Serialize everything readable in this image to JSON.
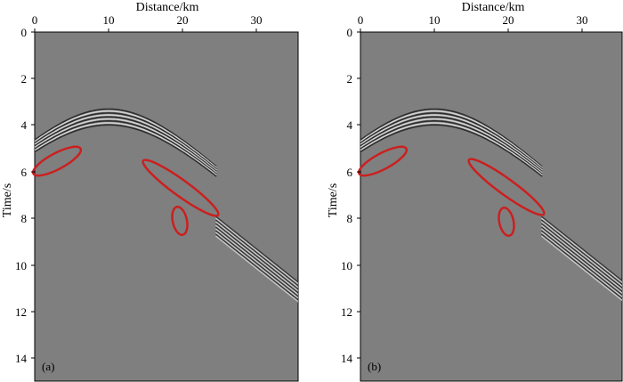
{
  "figure": {
    "background": "#7f7f7f",
    "highlight_color": "#cc1f1f",
    "panels": [
      {
        "tag": "(a)",
        "x_title": "Distance/km",
        "y_title": "Time/s",
        "x_ticks": [
          "0",
          "10",
          "20",
          "30"
        ],
        "y_ticks": [
          "0",
          "2",
          "4",
          "6",
          "8",
          "10",
          "12",
          "14"
        ]
      },
      {
        "tag": "(b)",
        "x_title": "Distance/km",
        "y_title": "Time/s",
        "x_ticks": [
          "0",
          "10",
          "20",
          "30"
        ],
        "y_ticks": [
          "0",
          "2",
          "4",
          "6",
          "8",
          "10",
          "12",
          "14"
        ]
      }
    ]
  }
}
